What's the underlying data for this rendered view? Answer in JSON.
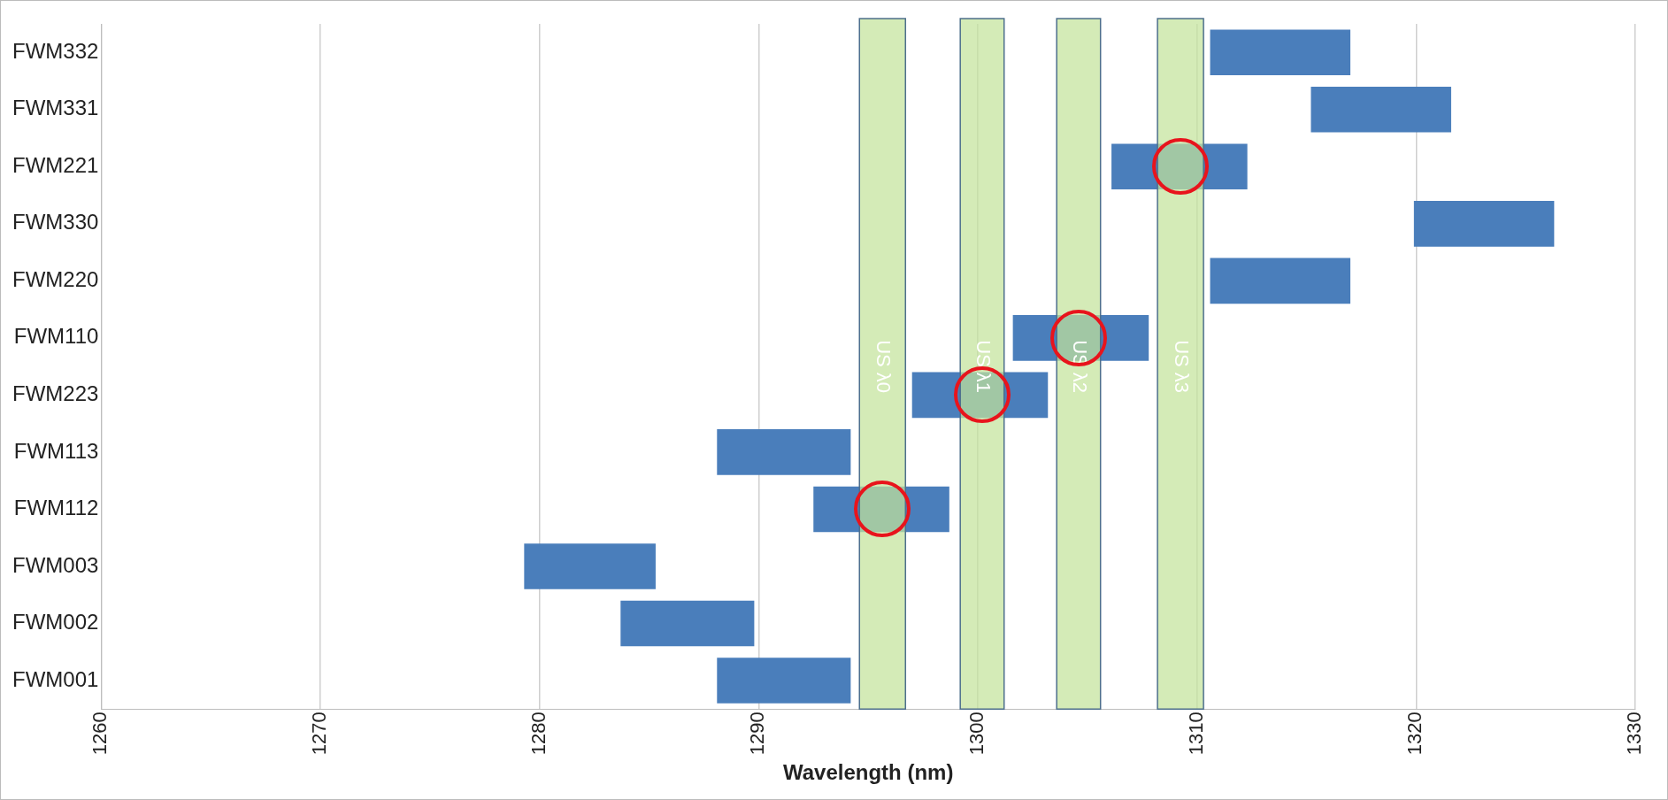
{
  "chart_data": {
    "type": "bar",
    "orientation": "horizontal",
    "xlabel": "Wavelength (nm)",
    "categories": [
      "FWM332",
      "FWM331",
      "FWM221",
      "FWM330",
      "FWM220",
      "FWM110",
      "FWM223",
      "FWM113",
      "FWM112",
      "FWM003",
      "FWM002",
      "FWM001"
    ],
    "base": [
      1310.6,
      1315.2,
      1306.1,
      1319.9,
      1310.6,
      1301.6,
      1297.0,
      1288.1,
      1292.5,
      1279.3,
      1283.7,
      1288.1
    ],
    "values": [
      6.4,
      6.4,
      6.2,
      6.4,
      6.4,
      6.2,
      6.2,
      6.1,
      6.2,
      6.0,
      6.1,
      6.1
    ],
    "color": "#4a7ebb",
    "xlim": [
      1260,
      1330
    ],
    "xticks": [
      1260,
      1270,
      1280,
      1290,
      1300,
      1310,
      1320,
      1330
    ],
    "grid": "x",
    "legend": false,
    "bands": [
      {
        "axis": "x",
        "from": 1294.6,
        "to": 1296.7,
        "label": "US λ0",
        "color": "#c3e39b"
      },
      {
        "axis": "x",
        "from": 1299.2,
        "to": 1301.2,
        "label": "US λ1",
        "color": "#c3e39b"
      },
      {
        "axis": "x",
        "from": 1303.6,
        "to": 1305.6,
        "label": "US λ2",
        "color": "#c3e39b"
      },
      {
        "axis": "x",
        "from": 1308.2,
        "to": 1310.3,
        "label": "US λ3",
        "color": "#c3e39b"
      }
    ]
  }
}
